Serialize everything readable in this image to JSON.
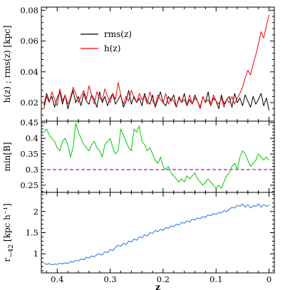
{
  "chart_data": [
    {
      "type": "line",
      "title": "",
      "xlabel": "",
      "ylabel": "h(z) ; rms(z) [kpc]",
      "xlim": [
        0.43,
        -0.01
      ],
      "ylim": [
        0.008,
        0.082
      ],
      "yticks": [
        0.02,
        0.04,
        0.06,
        0.08
      ],
      "ytick_labels": [
        "0.02",
        "0.04",
        "0.06",
        "0.08"
      ],
      "grid": false,
      "legend": "top-left",
      "series": [
        {
          "name": "rms(z)",
          "color": "#000000",
          "x": [
            0.425,
            0.42,
            0.415,
            0.41,
            0.405,
            0.4,
            0.395,
            0.39,
            0.385,
            0.38,
            0.375,
            0.37,
            0.365,
            0.36,
            0.355,
            0.35,
            0.345,
            0.34,
            0.335,
            0.33,
            0.325,
            0.32,
            0.315,
            0.31,
            0.305,
            0.3,
            0.295,
            0.29,
            0.285,
            0.28,
            0.275,
            0.27,
            0.265,
            0.26,
            0.255,
            0.25,
            0.245,
            0.24,
            0.235,
            0.23,
            0.225,
            0.22,
            0.215,
            0.21,
            0.205,
            0.2,
            0.195,
            0.19,
            0.185,
            0.18,
            0.175,
            0.17,
            0.165,
            0.16,
            0.155,
            0.15,
            0.145,
            0.14,
            0.135,
            0.13,
            0.125,
            0.12,
            0.115,
            0.11,
            0.105,
            0.1,
            0.095,
            0.09,
            0.085,
            0.08,
            0.075,
            0.07,
            0.065,
            0.06,
            0.055,
            0.05,
            0.045,
            0.04,
            0.035,
            0.03,
            0.025,
            0.02,
            0.015,
            0.01,
            0.005,
            0.0
          ],
          "y": [
            0.018,
            0.026,
            0.021,
            0.024,
            0.017,
            0.023,
            0.027,
            0.019,
            0.025,
            0.016,
            0.022,
            0.028,
            0.02,
            0.024,
            0.018,
            0.026,
            0.021,
            0.019,
            0.025,
            0.022,
            0.017,
            0.027,
            0.02,
            0.024,
            0.018,
            0.023,
            0.026,
            0.019,
            0.022,
            0.025,
            0.017,
            0.021,
            0.028,
            0.019,
            0.024,
            0.02,
            0.023,
            0.018,
            0.026,
            0.021,
            0.019,
            0.025,
            0.017,
            0.022,
            0.027,
            0.02,
            0.018,
            0.024,
            0.021,
            0.025,
            0.017,
            0.023,
            0.02,
            0.026,
            0.018,
            0.022,
            0.019,
            0.025,
            0.021,
            0.017,
            0.024,
            0.02,
            0.027,
            0.018,
            0.023,
            0.021,
            0.016,
            0.025,
            0.019,
            0.022,
            0.024,
            0.017,
            0.026,
            0.02,
            0.023,
            0.018,
            0.025,
            0.021,
            0.017,
            0.024,
            0.019,
            0.022,
            0.026,
            0.018,
            0.023,
            0.015
          ]
        },
        {
          "name": "h(z)",
          "color": "#ff0000",
          "x": [
            0.425,
            0.42,
            0.415,
            0.41,
            0.405,
            0.4,
            0.395,
            0.39,
            0.385,
            0.38,
            0.375,
            0.37,
            0.365,
            0.36,
            0.355,
            0.35,
            0.345,
            0.34,
            0.335,
            0.33,
            0.325,
            0.32,
            0.315,
            0.31,
            0.305,
            0.3,
            0.295,
            0.29,
            0.285,
            0.28,
            0.275,
            0.27,
            0.265,
            0.26,
            0.255,
            0.25,
            0.245,
            0.24,
            0.235,
            0.23,
            0.225,
            0.22,
            0.215,
            0.21,
            0.205,
            0.2,
            0.195,
            0.19,
            0.185,
            0.18,
            0.175,
            0.17,
            0.165,
            0.16,
            0.155,
            0.15,
            0.145,
            0.14,
            0.135,
            0.13,
            0.125,
            0.12,
            0.115,
            0.11,
            0.105,
            0.1,
            0.095,
            0.09,
            0.085,
            0.08,
            0.075,
            0.07,
            0.065,
            0.06,
            0.055,
            0.05,
            0.045,
            0.04,
            0.035,
            0.03,
            0.025,
            0.02,
            0.015,
            0.01,
            0.005,
            0.0
          ],
          "y": [
            0.016,
            0.024,
            0.02,
            0.027,
            0.022,
            0.018,
            0.029,
            0.021,
            0.025,
            0.019,
            0.023,
            0.03,
            0.026,
            0.02,
            0.024,
            0.028,
            0.022,
            0.031,
            0.025,
            0.019,
            0.027,
            0.023,
            0.021,
            0.029,
            0.024,
            0.02,
            0.026,
            0.022,
            0.033,
            0.025,
            0.019,
            0.024,
            0.021,
            0.028,
            0.023,
            0.02,
            0.026,
            0.022,
            0.024,
            0.019,
            0.027,
            0.021,
            0.018,
            0.025,
            0.022,
            0.02,
            0.026,
            0.019,
            0.023,
            0.021,
            0.017,
            0.024,
            0.02,
            0.022,
            0.018,
            0.025,
            0.019,
            0.023,
            0.021,
            0.016,
            0.024,
            0.02,
            0.022,
            0.018,
            0.025,
            0.021,
            0.019,
            0.023,
            0.017,
            0.022,
            0.02,
            0.024,
            0.019,
            0.023,
            0.026,
            0.03,
            0.036,
            0.041,
            0.038,
            0.045,
            0.051,
            0.058,
            0.066,
            0.062,
            0.07,
            0.077
          ]
        }
      ]
    },
    {
      "type": "line",
      "title": "",
      "xlabel": "",
      "ylabel": "min[B]",
      "xlim": [
        0.43,
        -0.01
      ],
      "ylim": [
        0.227,
        0.455
      ],
      "yticks": [
        0.25,
        0.3,
        0.35,
        0.4,
        0.45
      ],
      "ytick_labels": [
        "0.25",
        "0.3",
        "0.35",
        "0.4",
        "0.45"
      ],
      "grid": false,
      "reference_line": {
        "y": 0.3,
        "color": "#cc00cc",
        "style": "dashed"
      },
      "series": [
        {
          "color": "#00cc00",
          "x": [
            0.425,
            0.42,
            0.415,
            0.41,
            0.405,
            0.4,
            0.395,
            0.39,
            0.385,
            0.38,
            0.375,
            0.37,
            0.365,
            0.36,
            0.355,
            0.35,
            0.345,
            0.34,
            0.335,
            0.33,
            0.325,
            0.32,
            0.315,
            0.31,
            0.305,
            0.3,
            0.295,
            0.29,
            0.285,
            0.28,
            0.275,
            0.27,
            0.265,
            0.26,
            0.255,
            0.25,
            0.245,
            0.24,
            0.235,
            0.23,
            0.225,
            0.22,
            0.215,
            0.21,
            0.205,
            0.2,
            0.195,
            0.19,
            0.185,
            0.18,
            0.175,
            0.17,
            0.165,
            0.16,
            0.155,
            0.15,
            0.145,
            0.14,
            0.135,
            0.13,
            0.125,
            0.12,
            0.115,
            0.11,
            0.105,
            0.1,
            0.095,
            0.09,
            0.085,
            0.08,
            0.075,
            0.07,
            0.065,
            0.06,
            0.055,
            0.05,
            0.045,
            0.04,
            0.035,
            0.03,
            0.025,
            0.02,
            0.015,
            0.01,
            0.005,
            0.0
          ],
          "y": [
            0.42,
            0.43,
            0.41,
            0.4,
            0.39,
            0.37,
            0.36,
            0.39,
            0.4,
            0.38,
            0.34,
            0.37,
            0.45,
            0.42,
            0.4,
            0.38,
            0.37,
            0.36,
            0.38,
            0.39,
            0.37,
            0.36,
            0.34,
            0.38,
            0.39,
            0.4,
            0.37,
            0.35,
            0.36,
            0.43,
            0.41,
            0.39,
            0.37,
            0.36,
            0.43,
            0.42,
            0.44,
            0.39,
            0.38,
            0.36,
            0.37,
            0.35,
            0.33,
            0.32,
            0.34,
            0.31,
            0.3,
            0.31,
            0.29,
            0.28,
            0.27,
            0.26,
            0.27,
            0.26,
            0.28,
            0.27,
            0.28,
            0.29,
            0.27,
            0.26,
            0.25,
            0.26,
            0.27,
            0.26,
            0.25,
            0.24,
            0.25,
            0.24,
            0.26,
            0.28,
            0.29,
            0.31,
            0.32,
            0.3,
            0.34,
            0.36,
            0.35,
            0.33,
            0.31,
            0.32,
            0.33,
            0.35,
            0.34,
            0.33,
            0.34,
            0.33
          ]
        }
      ]
    },
    {
      "type": "line",
      "title": "",
      "xlabel": "z",
      "ylabel": "r_{−42} [kpc h⁻¹]",
      "ylabel_parts": {
        "base": "r",
        "subscript": "−42",
        "unit": "[kpc h⁻¹]"
      },
      "xlim": [
        0.43,
        -0.01
      ],
      "ylim": [
        0.55,
        2.45
      ],
      "xticks": [
        0.4,
        0.3,
        0.2,
        0.1,
        0.0
      ],
      "xtick_labels": [
        "0.4",
        "0.3",
        "0.2",
        "0.1",
        "0"
      ],
      "yticks": [
        1,
        1.5,
        2
      ],
      "ytick_labels": [
        "1",
        "1.5",
        "2"
      ],
      "grid": false,
      "series": [
        {
          "color": "#1f77e0",
          "x": [
            0.425,
            0.42,
            0.415,
            0.41,
            0.405,
            0.4,
            0.395,
            0.39,
            0.385,
            0.38,
            0.375,
            0.37,
            0.365,
            0.36,
            0.355,
            0.35,
            0.345,
            0.34,
            0.335,
            0.33,
            0.325,
            0.32,
            0.315,
            0.31,
            0.305,
            0.3,
            0.295,
            0.29,
            0.285,
            0.28,
            0.275,
            0.27,
            0.265,
            0.26,
            0.255,
            0.25,
            0.245,
            0.24,
            0.235,
            0.23,
            0.225,
            0.22,
            0.215,
            0.21,
            0.205,
            0.2,
            0.195,
            0.19,
            0.185,
            0.18,
            0.175,
            0.17,
            0.165,
            0.16,
            0.155,
            0.15,
            0.145,
            0.14,
            0.135,
            0.13,
            0.125,
            0.12,
            0.115,
            0.11,
            0.105,
            0.1,
            0.095,
            0.09,
            0.085,
            0.08,
            0.075,
            0.07,
            0.065,
            0.06,
            0.055,
            0.05,
            0.045,
            0.04,
            0.035,
            0.03,
            0.025,
            0.02,
            0.015,
            0.01,
            0.005,
            0.0
          ],
          "y": [
            0.78,
            0.75,
            0.77,
            0.74,
            0.76,
            0.75,
            0.78,
            0.76,
            0.79,
            0.77,
            0.82,
            0.8,
            0.85,
            0.83,
            0.88,
            0.86,
            0.92,
            0.9,
            0.95,
            0.93,
            0.98,
            1.0,
            0.97,
            1.05,
            1.03,
            1.1,
            1.08,
            1.15,
            1.2,
            1.18,
            1.25,
            1.22,
            1.3,
            1.28,
            1.35,
            1.32,
            1.4,
            1.38,
            1.45,
            1.42,
            1.5,
            1.48,
            1.55,
            1.52,
            1.58,
            1.55,
            1.62,
            1.6,
            1.66,
            1.64,
            1.7,
            1.68,
            1.74,
            1.72,
            1.78,
            1.75,
            1.82,
            1.8,
            1.85,
            1.83,
            1.88,
            1.86,
            1.92,
            1.9,
            1.95,
            1.93,
            1.98,
            1.96,
            2.02,
            2.0,
            2.05,
            2.1,
            2.08,
            2.15,
            2.12,
            2.18,
            2.1,
            2.16,
            2.08,
            2.14,
            2.12,
            2.18,
            2.1,
            2.16,
            2.12,
            2.15
          ]
        }
      ]
    }
  ]
}
